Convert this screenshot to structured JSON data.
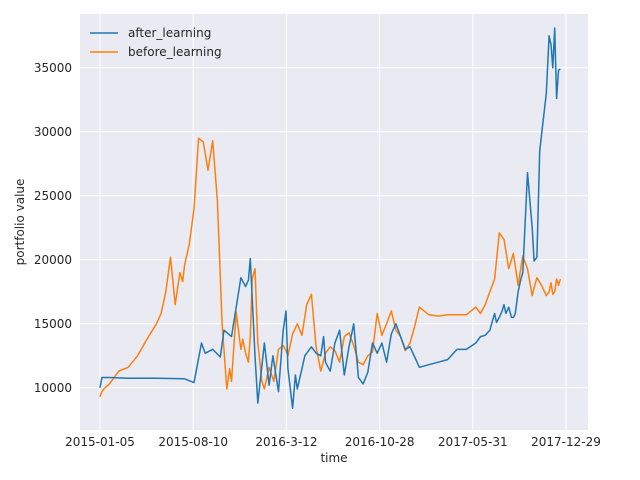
{
  "chart_data": {
    "type": "line",
    "title": "",
    "xlabel": "time",
    "ylabel": "portfolio value",
    "x_ticks": [
      "2015-01-05",
      "2015-08-10",
      "2016-3-12",
      "2016-10-28",
      "2017-05-31",
      "2017-12-29"
    ],
    "x_range": [
      0,
      496
    ],
    "ylim": [
      6700,
      39200
    ],
    "y_ticks": [
      10000,
      15000,
      20000,
      25000,
      30000,
      35000
    ],
    "grid": true,
    "legend": "top-left",
    "series": [
      {
        "name": "after_learning",
        "color": "#1f77b4",
        "x": [
          0,
          2,
          4,
          10,
          30,
          60,
          90,
          100,
          108,
          112,
          120,
          128,
          132,
          140,
          146,
          150,
          155,
          158,
          160,
          165,
          168,
          175,
          180,
          184,
          190,
          195,
          198,
          200,
          205,
          208,
          210,
          215,
          218,
          225,
          230,
          235,
          238,
          240,
          245,
          250,
          255,
          260,
          265,
          270,
          275,
          280,
          285,
          290,
          295,
          300,
          305,
          310,
          315,
          320,
          325,
          330,
          340,
          350,
          360,
          370,
          380,
          390,
          400,
          405,
          410,
          415,
          418,
          420,
          422,
          425,
          428,
          430,
          432,
          435,
          438,
          440,
          442,
          445,
          448,
          450,
          455,
          460,
          462,
          465,
          468,
          470,
          475,
          478,
          480,
          482,
          484,
          486,
          488,
          490
        ],
        "values": [
          10000,
          10800,
          10800,
          10800,
          10750,
          10750,
          10700,
          10400,
          13500,
          12700,
          13000,
          12400,
          14500,
          14000,
          16800,
          18600,
          17900,
          18400,
          20100,
          12500,
          8800,
          13500,
          10200,
          12500,
          9700,
          14500,
          16000,
          11500,
          8400,
          11000,
          9900,
          11500,
          12500,
          13200,
          12700,
          12500,
          14000,
          12000,
          11300,
          13500,
          14500,
          11000,
          13200,
          15000,
          10800,
          10300,
          11200,
          13500,
          12700,
          13500,
          12000,
          14200,
          15000,
          14000,
          13000,
          13200,
          11600,
          11800,
          12000,
          12200,
          13000,
          13000,
          13500,
          14000,
          14100,
          14500,
          15300,
          15800,
          15100,
          15500,
          16000,
          16500,
          15800,
          16300,
          15500,
          15500,
          15800,
          17500,
          18500,
          19000,
          26800,
          22500,
          19900,
          20200,
          28500,
          29800,
          33000,
          37500,
          36800,
          35000,
          38100,
          32600,
          34800,
          34900
        ]
      },
      {
        "name": "before_learning",
        "color": "#ff7f0e",
        "x": [
          0,
          2,
          4,
          10,
          20,
          30,
          40,
          50,
          60,
          65,
          70,
          75,
          80,
          85,
          88,
          90,
          95,
          100,
          105,
          110,
          115,
          120,
          125,
          130,
          135,
          138,
          140,
          145,
          150,
          152,
          155,
          158,
          160,
          162,
          165,
          168,
          170,
          172,
          175,
          180,
          185,
          190,
          195,
          198,
          200,
          205,
          210,
          215,
          220,
          225,
          230,
          235,
          240,
          245,
          250,
          255,
          260,
          265,
          270,
          275,
          280,
          285,
          290,
          295,
          300,
          305,
          310,
          315,
          320,
          325,
          330,
          335,
          340,
          350,
          360,
          370,
          380,
          390,
          400,
          405,
          410,
          415,
          420,
          425,
          430,
          435,
          440,
          445,
          450,
          455,
          460,
          462,
          465,
          470,
          475,
          478,
          480,
          482,
          484,
          486,
          488,
          490
        ],
        "values": [
          9300,
          9700,
          9900,
          10300,
          11300,
          11600,
          12500,
          13800,
          15000,
          15800,
          17500,
          20200,
          16500,
          19000,
          18300,
          19600,
          21200,
          24000,
          29500,
          29200,
          27000,
          29300,
          24600,
          15000,
          9900,
          11500,
          10500,
          15900,
          13000,
          13800,
          12700,
          12000,
          14000,
          18500,
          19300,
          13500,
          12200,
          10600,
          9900,
          11600,
          10500,
          13000,
          13300,
          12900,
          12500,
          14200,
          15000,
          14100,
          16500,
          17300,
          13200,
          11300,
          12700,
          13200,
          12900,
          12000,
          14000,
          14300,
          13300,
          12000,
          11800,
          12500,
          12800,
          15800,
          14100,
          15000,
          16000,
          14500,
          14000,
          12900,
          13500,
          14800,
          16300,
          15700,
          15600,
          15700,
          15700,
          15700,
          16300,
          15800,
          16500,
          17500,
          18500,
          22100,
          21600,
          19300,
          20500,
          18000,
          20300,
          19300,
          17200,
          17800,
          18600,
          18000,
          17200,
          17500,
          18200,
          17300,
          17500,
          18500,
          18000,
          18500
        ]
      }
    ]
  }
}
